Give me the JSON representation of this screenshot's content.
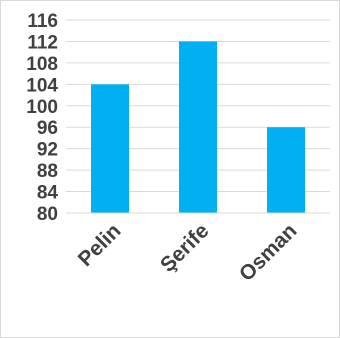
{
  "chart_data": {
    "type": "bar",
    "title": "",
    "xlabel": "",
    "ylabel": "",
    "categories": [
      "Pelin",
      "Şerife",
      "Osman"
    ],
    "values": [
      104,
      112,
      96
    ],
    "ylim": [
      80,
      116
    ],
    "yticks": [
      "80",
      "84",
      "88",
      "92",
      "96",
      "100",
      "104",
      "108",
      "112",
      "116"
    ],
    "grid": true,
    "legend": "none",
    "bar_color": "#00b0f0",
    "grid_color": "#d9d9d9",
    "text_color": "#404040"
  }
}
